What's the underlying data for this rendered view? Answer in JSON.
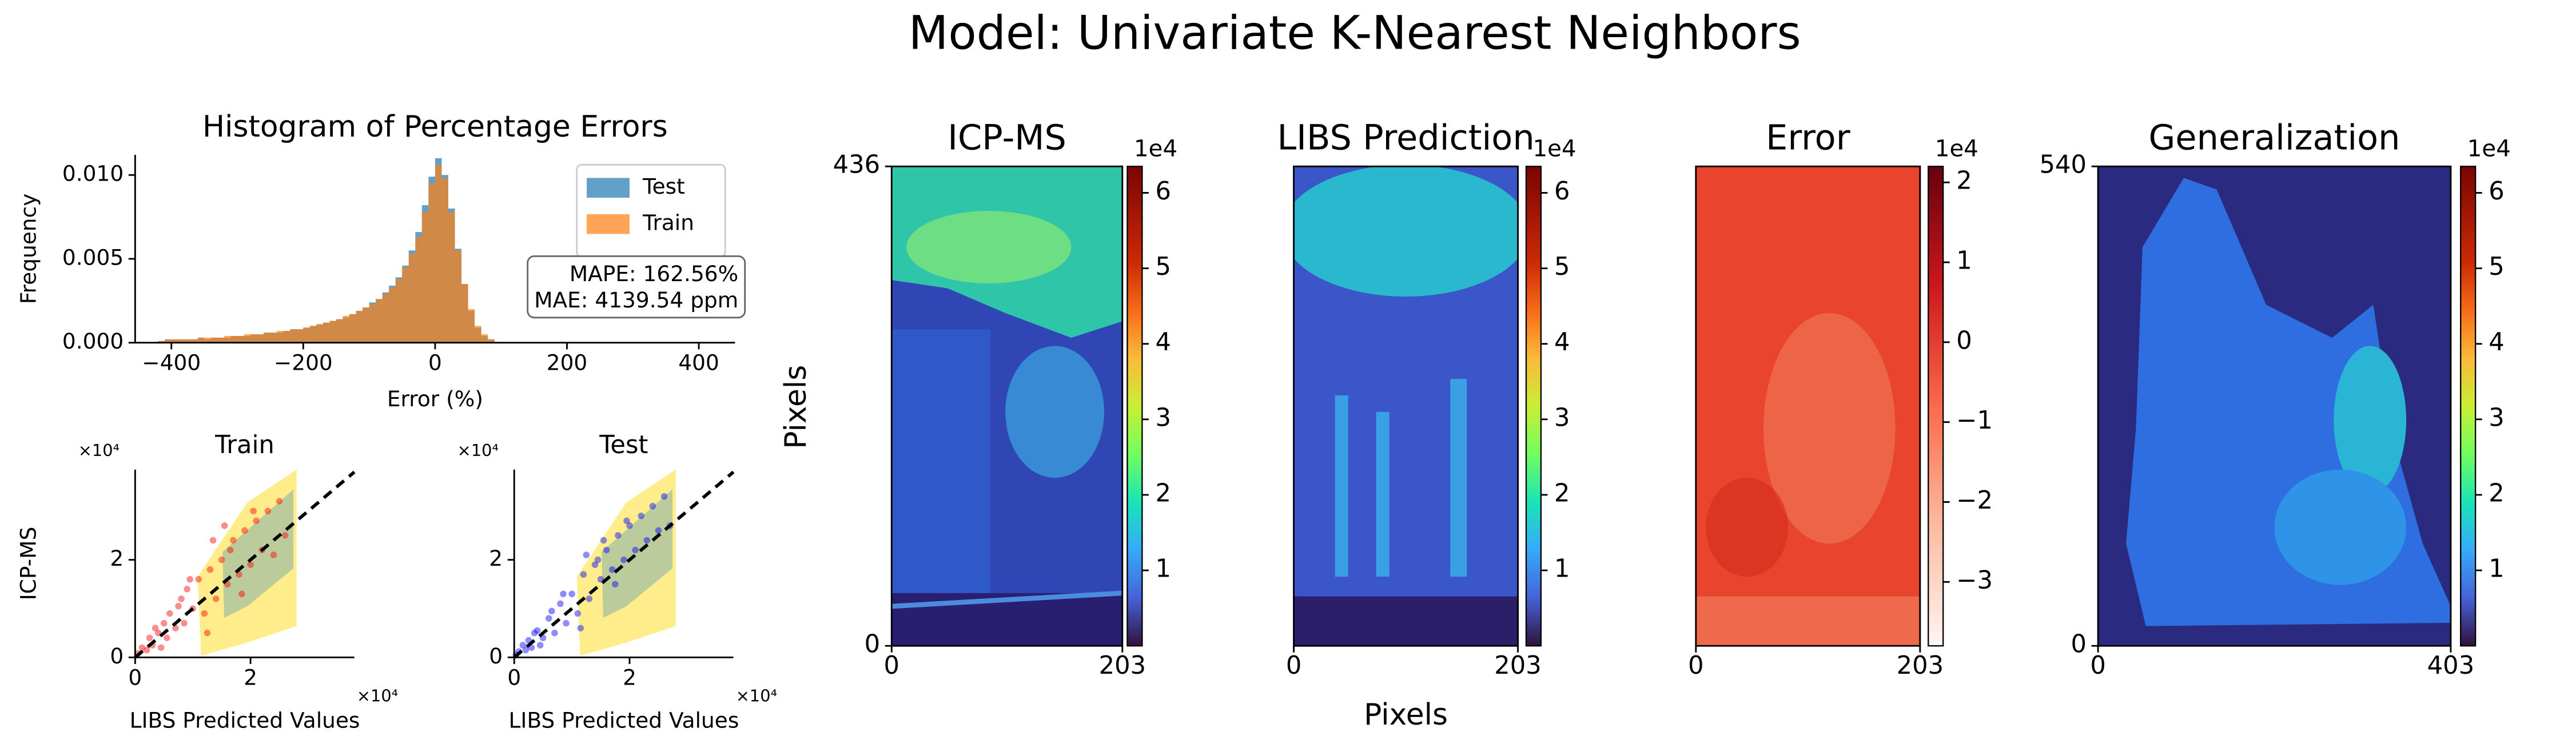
{
  "title": "Model: Univariate K-Nearest Neighbors",
  "shared_x_label": "Pixels",
  "shared_y_label": "Pixels",
  "chart_data": [
    {
      "type": "histogram",
      "title": "Histogram of Percentage Errors",
      "x_label": "Error (%)",
      "y_label": "Frequency",
      "bins": [
        -420,
        -410,
        -400,
        -390,
        -380,
        -370,
        -360,
        -350,
        -340,
        -330,
        -320,
        -310,
        -300,
        -290,
        -280,
        -270,
        -260,
        -250,
        -240,
        -230,
        -220,
        -210,
        -200,
        -190,
        -180,
        -170,
        -160,
        -150,
        -140,
        -130,
        -120,
        -110,
        -100,
        -90,
        -80,
        -70,
        -60,
        -50,
        -40,
        -30,
        -20,
        -10,
        0,
        10,
        20,
        30,
        40,
        50,
        60,
        70,
        80,
        90,
        100
      ],
      "series": [
        {
          "name": "Test",
          "color": "#1f77b4",
          "values": [
            0.0001,
            0.0002,
            0.0002,
            0.0002,
            0.0002,
            0.0002,
            0.0003,
            0.0002,
            0.0003,
            0.0003,
            0.0003,
            0.0004,
            0.0004,
            0.0004,
            0.0005,
            0.0005,
            0.0006,
            0.0006,
            0.0006,
            0.0007,
            0.0008,
            0.0008,
            0.0009,
            0.001,
            0.0011,
            0.0012,
            0.0013,
            0.0014,
            0.0015,
            0.0017,
            0.0019,
            0.0021,
            0.0024,
            0.0026,
            0.003,
            0.0034,
            0.0039,
            0.0046,
            0.0055,
            0.0066,
            0.0082,
            0.0099,
            0.011,
            0.01,
            0.008,
            0.0056,
            0.0035,
            0.0019,
            0.0009,
            0.0004,
            0.0002,
            0.0
          ]
        },
        {
          "name": "Train",
          "color": "#ff7f0e",
          "values": [
            0.0001,
            0.0002,
            0.0002,
            0.0002,
            0.0002,
            0.0002,
            0.0003,
            0.0003,
            0.0003,
            0.0003,
            0.0004,
            0.0004,
            0.0004,
            0.0005,
            0.0005,
            0.0005,
            0.0006,
            0.0006,
            0.0007,
            0.0007,
            0.0008,
            0.0008,
            0.0009,
            0.001,
            0.0011,
            0.0012,
            0.0013,
            0.0014,
            0.0016,
            0.0017,
            0.0019,
            0.0021,
            0.0023,
            0.0026,
            0.0029,
            0.0033,
            0.0038,
            0.0045,
            0.0053,
            0.0063,
            0.0078,
            0.0095,
            0.0106,
            0.0098,
            0.0078,
            0.0055,
            0.0035,
            0.002,
            0.001,
            0.0005,
            0.0002,
            0.0
          ]
        }
      ],
      "xlim": [
        -455,
        455
      ],
      "xticks": [
        {
          "value": -400,
          "label": "−400"
        },
        {
          "value": -200,
          "label": "−200"
        },
        0,
        200,
        400
      ],
      "ylim": [
        0,
        0.0112
      ],
      "yticks": [
        {
          "value": 0,
          "label": "0.000"
        },
        {
          "value": 0.005,
          "label": "0.005"
        },
        {
          "value": 0.01,
          "label": "0.010"
        }
      ],
      "legend": "upper right",
      "annotation_lines": [
        "MAPE: 162.56%",
        "MAE: 4139.54 ppm"
      ]
    },
    {
      "type": "scatter",
      "title": "Train",
      "x_label": "LIBS Predicted Values",
      "y_label": "ICP-MS",
      "x_offset_label": "×10⁴",
      "y_offset_label": "×10⁴",
      "xlim": [
        0,
        38000
      ],
      "xticks": [
        0,
        {
          "value": 20000,
          "label": "2"
        }
      ],
      "ylim": [
        0,
        38500
      ],
      "yticks": [
        0,
        {
          "value": 20000,
          "label": "2"
        }
      ],
      "series": [
        {
          "color": "#ff0000",
          "x": [
            500,
            1200,
            2000,
            2500,
            3000,
            4000,
            5000,
            5500,
            6000,
            7000,
            8000,
            8500,
            9000,
            10000,
            11000,
            12000,
            13000,
            14000,
            15000,
            16000,
            17000,
            18000,
            19000,
            20000,
            21000,
            22000,
            23000,
            24000,
            25000,
            26000,
            3500,
            7500,
            12500,
            16500,
            18500,
            20500,
            15500,
            9500,
            4500,
            13500
          ],
          "values": [
            800,
            2000,
            1500,
            4000,
            2500,
            5000,
            7000,
            4000,
            9000,
            6000,
            12000,
            7000,
            14000,
            10000,
            16000,
            9000,
            18000,
            12000,
            20000,
            15000,
            24000,
            17000,
            26000,
            19000,
            28000,
            22000,
            30000,
            21000,
            32000,
            25000,
            6000,
            10500,
            5000,
            22000,
            13000,
            30000,
            27000,
            16000,
            2000,
            24000
          ]
        }
      ]
    },
    {
      "type": "scatter",
      "title": "Test",
      "x_label": "LIBS Predicted Values",
      "x_offset_label": "×10⁴",
      "y_offset_label": "×10⁴",
      "xlim": [
        0,
        38000
      ],
      "xticks": [
        0,
        {
          "value": 20000,
          "label": "2"
        }
      ],
      "ylim": [
        0,
        38500
      ],
      "yticks": [
        0,
        {
          "value": 20000,
          "label": "2"
        }
      ],
      "series": [
        {
          "color": "#0000ff",
          "x": [
            300,
            800,
            1500,
            2000,
            2500,
            3000,
            4000,
            5000,
            6000,
            7000,
            8000,
            9000,
            10000,
            11000,
            12000,
            13000,
            14000,
            15000,
            16000,
            17000,
            18000,
            19000,
            20000,
            21000,
            22000,
            23000,
            24000,
            25000,
            26000,
            27000,
            3500,
            6500,
            11500,
            15500,
            17500,
            19500,
            14500,
            8500,
            4500,
            12500
          ],
          "values": [
            500,
            1200,
            2500,
            1500,
            3500,
            2000,
            5500,
            4000,
            8000,
            5000,
            11000,
            7000,
            13000,
            9000,
            17000,
            12000,
            19000,
            16000,
            22000,
            18000,
            25000,
            20000,
            27000,
            22000,
            29000,
            24000,
            31000,
            26000,
            33000,
            27000,
            5000,
            9500,
            6000,
            24000,
            15000,
            28000,
            20000,
            13000,
            2500,
            21000
          ]
        }
      ]
    },
    {
      "type": "heatmap",
      "title": "ICP-MS",
      "colormap": "turbo",
      "xlim": [
        0,
        203
      ],
      "xticks": [
        0,
        203
      ],
      "ylim": [
        0,
        436
      ],
      "yticks": [
        0,
        436
      ],
      "clim": [
        0,
        63500
      ],
      "cbar_offset_label": "1e4",
      "cbar_ticks": [
        {
          "value": 10000,
          "label": "1"
        },
        {
          "value": 20000,
          "label": "2"
        },
        {
          "value": 30000,
          "label": "3"
        },
        {
          "value": 40000,
          "label": "4"
        },
        {
          "value": 50000,
          "label": "5"
        },
        {
          "value": 60000,
          "label": "6"
        }
      ]
    },
    {
      "type": "heatmap",
      "title": "LIBS Prediction",
      "colormap": "turbo",
      "xlim": [
        0,
        203
      ],
      "xticks": [
        0,
        203
      ],
      "ylim": [
        0,
        436
      ],
      "clim": [
        0,
        63500
      ],
      "cbar_offset_label": "1e4",
      "cbar_ticks": [
        {
          "value": 10000,
          "label": "1"
        },
        {
          "value": 20000,
          "label": "2"
        },
        {
          "value": 30000,
          "label": "3"
        },
        {
          "value": 40000,
          "label": "4"
        },
        {
          "value": 50000,
          "label": "5"
        },
        {
          "value": 60000,
          "label": "6"
        }
      ]
    },
    {
      "type": "heatmap",
      "title": "Error",
      "colormap": "reds",
      "xlim": [
        0,
        203
      ],
      "xticks": [
        0,
        203
      ],
      "ylim": [
        0,
        436
      ],
      "clim": [
        -38000,
        22000
      ],
      "cbar_offset_label": "1e4",
      "cbar_ticks": [
        {
          "value": -30000,
          "label": "−3"
        },
        {
          "value": -20000,
          "label": "−2"
        },
        {
          "value": -10000,
          "label": "−1"
        },
        0,
        {
          "value": 10000,
          "label": "1"
        },
        {
          "value": 20000,
          "label": "2"
        }
      ]
    },
    {
      "type": "heatmap",
      "title": "Generalization",
      "colormap": "turbo",
      "xlim": [
        0,
        403
      ],
      "xticks": [
        0,
        403
      ],
      "ylim": [
        0,
        540
      ],
      "yticks": [
        0,
        540
      ],
      "clim": [
        0,
        63500
      ],
      "cbar_offset_label": "1e4",
      "cbar_ticks": [
        {
          "value": 10000,
          "label": "1"
        },
        {
          "value": 20000,
          "label": "2"
        },
        {
          "value": 30000,
          "label": "3"
        },
        {
          "value": 40000,
          "label": "4"
        },
        {
          "value": 50000,
          "label": "5"
        },
        {
          "value": 60000,
          "label": "6"
        }
      ]
    }
  ]
}
